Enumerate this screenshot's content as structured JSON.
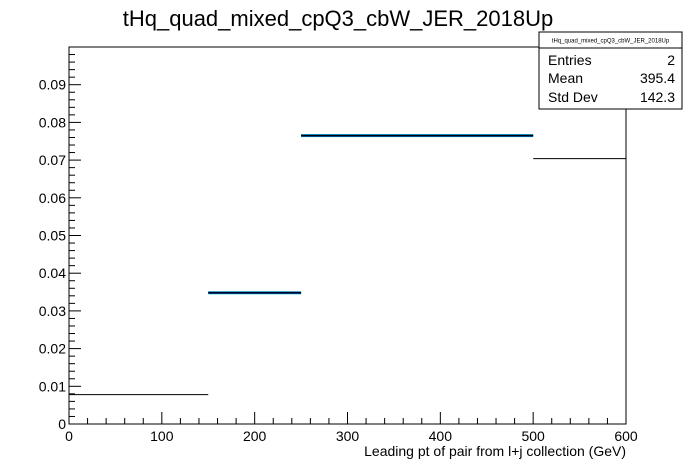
{
  "chart_data": {
    "type": "histogram",
    "title": "tHq_quad_mixed_cpQ3_cbW_JER_2018Up",
    "xlabel": "Leading pt of pair from l+j collection (GeV)",
    "ylabel": "",
    "xlim": [
      0,
      600
    ],
    "ylim": [
      0,
      0.1
    ],
    "x_ticks": [
      "0",
      "100",
      "200",
      "300",
      "400",
      "500",
      "600"
    ],
    "y_ticks": [
      "0",
      "0.01",
      "0.02",
      "0.03",
      "0.04",
      "0.05",
      "0.06",
      "0.07",
      "0.08",
      "0.09"
    ],
    "grid": false,
    "bins": [
      {
        "x0": 0,
        "x1": 150,
        "value": 0.0078,
        "error": 0
      },
      {
        "x0": 150,
        "x1": 250,
        "value": 0.0348,
        "error": 0.0004
      },
      {
        "x0": 250,
        "x1": 500,
        "value": 0.0765,
        "error": 0.0004
      },
      {
        "x0": 500,
        "x1": 600,
        "value": 0.0704,
        "error": 0
      }
    ],
    "stats": {
      "title": "tHq_quad_mixed_cpQ3_cbW_JER_2018Up",
      "rows": [
        {
          "label": "Entries",
          "value": "2"
        },
        {
          "label": "Mean",
          "value": "395.4"
        },
        {
          "label": "Std Dev",
          "value": "142.3"
        }
      ],
      "placement": "top-right"
    },
    "colors": {
      "line": "#000000",
      "band": "#00cccc",
      "mid_band": "#000080"
    }
  }
}
